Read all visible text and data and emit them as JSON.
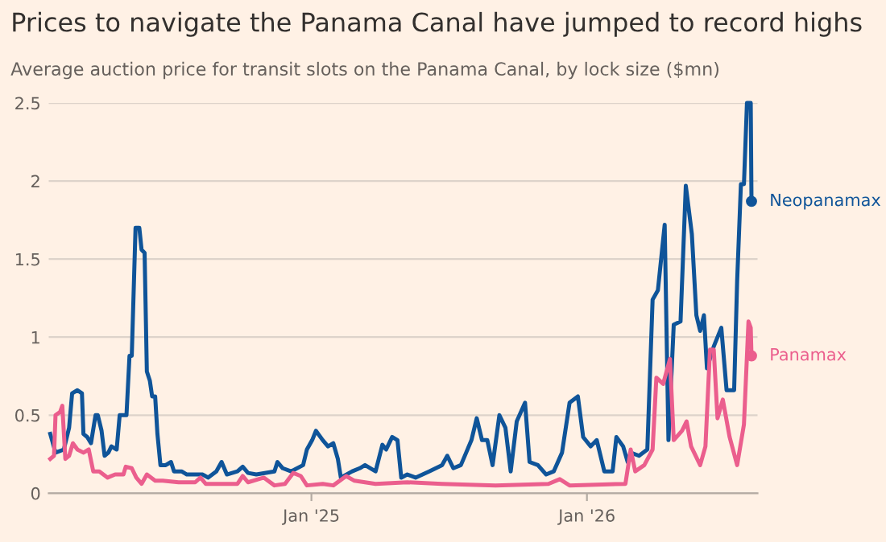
{
  "chart_data": {
    "type": "line",
    "title": "Prices to navigate the Panama Canal have jumped to record highs",
    "subtitle": "Average auction price for transit slots on the Panama Canal, by lock size ($mn)",
    "xlim": [
      "2024-01-19",
      "2026-08-15"
    ],
    "xticks": [
      {
        "value": "2025-01-01",
        "label": "Jan '25"
      },
      {
        "value": "2026-01-01",
        "label": "Jan '26"
      }
    ],
    "ylim": [
      0,
      2.5
    ],
    "yticks": [
      0,
      0.5,
      1,
      1.5,
      2,
      2.5
    ],
    "grid": "y",
    "legend": false,
    "marker": "none",
    "line_style": "solid",
    "series": [
      {
        "name": "Neopanamax",
        "color": "#0f5499",
        "x": [
          "2024-01-21",
          "2024-01-28",
          "2024-02-08",
          "2024-02-15",
          "2024-02-19",
          "2024-02-26",
          "2024-03-03",
          "2024-03-05",
          "2024-03-10",
          "2024-03-15",
          "2024-03-21",
          "2024-03-24",
          "2024-03-29",
          "2024-04-02",
          "2024-04-07",
          "2024-04-11",
          "2024-04-18",
          "2024-04-22",
          "2024-05-01",
          "2024-05-05",
          "2024-05-08",
          "2024-05-13",
          "2024-05-18",
          "2024-05-21",
          "2024-05-25",
          "2024-05-28",
          "2024-06-01",
          "2024-06-04",
          "2024-06-08",
          "2024-06-11",
          "2024-06-15",
          "2024-06-22",
          "2024-06-29",
          "2024-07-03",
          "2024-07-13",
          "2024-07-20",
          "2024-08-10",
          "2024-08-17",
          "2024-08-28",
          "2024-09-04",
          "2024-09-11",
          "2024-09-25",
          "2024-10-02",
          "2024-10-09",
          "2024-10-20",
          "2024-11-13",
          "2024-11-17",
          "2024-11-24",
          "2024-12-05",
          "2024-12-21",
          "2024-12-26",
          "2025-01-02",
          "2025-01-07",
          "2025-01-16",
          "2025-01-23",
          "2025-01-30",
          "2025-02-05",
          "2025-02-09",
          "2025-02-24",
          "2025-03-06",
          "2025-03-13",
          "2025-03-27",
          "2025-04-05",
          "2025-04-10",
          "2025-04-18",
          "2025-04-25",
          "2025-04-30",
          "2025-05-08",
          "2025-05-19",
          "2025-06-06",
          "2025-06-23",
          "2025-06-30",
          "2025-07-08",
          "2025-07-18",
          "2025-07-25",
          "2025-08-01",
          "2025-08-08",
          "2025-08-15",
          "2025-08-22",
          "2025-08-29",
          "2025-09-07",
          "2025-09-15",
          "2025-09-22",
          "2025-09-30",
          "2025-10-11",
          "2025-10-17",
          "2025-10-28",
          "2025-11-08",
          "2025-11-18",
          "2025-11-29",
          "2025-12-09",
          "2025-12-20",
          "2025-12-27",
          "2026-01-06",
          "2026-01-14",
          "2026-01-24",
          "2026-02-04",
          "2026-02-09",
          "2026-02-18",
          "2026-02-24",
          "2026-02-28",
          "2026-03-11",
          "2026-03-22",
          "2026-03-29",
          "2026-04-05",
          "2026-04-14",
          "2026-04-19",
          "2026-04-26",
          "2026-05-05",
          "2026-05-12",
          "2026-05-20",
          "2026-05-26",
          "2026-05-31",
          "2026-06-05",
          "2026-06-09",
          "2026-06-18",
          "2026-06-28",
          "2026-07-05",
          "2026-07-15",
          "2026-07-19",
          "2026-07-24",
          "2026-07-28",
          "2026-08-01",
          "2026-08-06",
          "2026-08-07"
        ],
        "values": [
          0.38,
          0.26,
          0.28,
          0.42,
          0.64,
          0.66,
          0.64,
          0.38,
          0.36,
          0.32,
          0.5,
          0.5,
          0.4,
          0.24,
          0.26,
          0.3,
          0.28,
          0.5,
          0.5,
          0.88,
          0.88,
          1.7,
          1.7,
          1.56,
          1.54,
          0.78,
          0.72,
          0.62,
          0.62,
          0.38,
          0.18,
          0.18,
          0.2,
          0.14,
          0.14,
          0.12,
          0.12,
          0.1,
          0.14,
          0.2,
          0.12,
          0.14,
          0.17,
          0.13,
          0.12,
          0.14,
          0.2,
          0.16,
          0.14,
          0.18,
          0.28,
          0.34,
          0.4,
          0.34,
          0.3,
          0.32,
          0.22,
          0.1,
          0.14,
          0.16,
          0.18,
          0.14,
          0.31,
          0.28,
          0.36,
          0.34,
          0.1,
          0.12,
          0.1,
          0.14,
          0.18,
          0.24,
          0.16,
          0.18,
          0.26,
          0.34,
          0.48,
          0.34,
          0.34,
          0.18,
          0.5,
          0.42,
          0.14,
          0.46,
          0.58,
          0.2,
          0.18,
          0.12,
          0.14,
          0.26,
          0.58,
          0.62,
          0.36,
          0.3,
          0.34,
          0.14,
          0.14,
          0.36,
          0.3,
          0.2,
          0.26,
          0.24,
          0.28,
          1.24,
          1.3,
          1.72,
          0.34,
          1.08,
          1.1,
          1.97,
          1.66,
          1.14,
          1.04,
          1.14,
          0.8,
          0.94,
          1.06,
          0.66,
          0.66,
          1.36,
          1.98,
          1.98,
          2.5,
          2.5,
          1.87
        ]
      },
      {
        "name": "Panamax",
        "color": "#eb5e8d",
        "x": [
          "2024-01-21",
          "2024-01-26",
          "2024-01-28",
          "2024-02-03",
          "2024-02-06",
          "2024-02-10",
          "2024-02-15",
          "2024-02-20",
          "2024-02-26",
          "2024-03-05",
          "2024-03-12",
          "2024-03-18",
          "2024-03-26",
          "2024-04-06",
          "2024-04-16",
          "2024-04-27",
          "2024-04-30",
          "2024-05-08",
          "2024-05-14",
          "2024-05-21",
          "2024-05-28",
          "2024-06-08",
          "2024-06-18",
          "2024-07-09",
          "2024-07-31",
          "2024-08-07",
          "2024-08-14",
          "2024-09-25",
          "2024-10-02",
          "2024-10-09",
          "2024-10-30",
          "2024-11-13",
          "2024-11-27",
          "2024-12-08",
          "2024-12-18",
          "2024-12-26",
          "2025-01-16",
          "2025-01-30",
          "2025-02-16",
          "2025-02-27",
          "2025-03-27",
          "2025-05-08",
          "2025-06-23",
          "2025-09-02",
          "2025-11-11",
          "2025-11-26",
          "2025-12-09",
          "2026-02-21",
          "2026-02-28",
          "2026-03-06",
          "2026-03-18",
          "2026-03-29",
          "2026-04-03",
          "2026-04-12",
          "2026-04-21",
          "2026-04-26",
          "2026-05-07",
          "2026-05-13",
          "2026-05-19",
          "2026-05-31",
          "2026-06-07",
          "2026-06-13",
          "2026-06-18",
          "2026-06-23",
          "2026-06-30",
          "2026-07-09",
          "2026-07-19",
          "2026-07-28",
          "2026-08-03",
          "2026-08-06",
          "2026-08-07"
        ],
        "values": [
          0.22,
          0.24,
          0.5,
          0.52,
          0.56,
          0.22,
          0.24,
          0.32,
          0.28,
          0.26,
          0.28,
          0.14,
          0.14,
          0.1,
          0.12,
          0.12,
          0.17,
          0.16,
          0.1,
          0.06,
          0.12,
          0.08,
          0.08,
          0.07,
          0.07,
          0.1,
          0.06,
          0.06,
          0.11,
          0.07,
          0.1,
          0.05,
          0.06,
          0.13,
          0.11,
          0.05,
          0.06,
          0.05,
          0.11,
          0.08,
          0.06,
          0.07,
          0.06,
          0.05,
          0.06,
          0.09,
          0.05,
          0.06,
          0.28,
          0.14,
          0.18,
          0.28,
          0.74,
          0.7,
          0.86,
          0.34,
          0.4,
          0.46,
          0.3,
          0.18,
          0.3,
          0.92,
          0.92,
          0.48,
          0.6,
          0.36,
          0.18,
          0.44,
          1.1,
          1.06,
          0.88
        ]
      }
    ]
  }
}
